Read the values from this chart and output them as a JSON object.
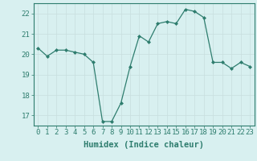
{
  "x": [
    0,
    1,
    2,
    3,
    4,
    5,
    6,
    7,
    8,
    9,
    10,
    11,
    12,
    13,
    14,
    15,
    16,
    17,
    18,
    19,
    20,
    21,
    22,
    23
  ],
  "y": [
    20.3,
    19.9,
    20.2,
    20.2,
    20.1,
    20.0,
    19.6,
    16.7,
    16.7,
    17.6,
    19.4,
    20.9,
    20.6,
    21.5,
    21.6,
    21.5,
    22.2,
    22.1,
    21.8,
    19.6,
    19.6,
    19.3,
    19.6,
    19.4
  ],
  "xlabel": "Humidex (Indice chaleur)",
  "xlim": [
    -0.5,
    23.5
  ],
  "ylim": [
    16.5,
    22.5
  ],
  "yticks": [
    17,
    18,
    19,
    20,
    21,
    22
  ],
  "xticks": [
    0,
    1,
    2,
    3,
    4,
    5,
    6,
    7,
    8,
    9,
    10,
    11,
    12,
    13,
    14,
    15,
    16,
    17,
    18,
    19,
    20,
    21,
    22,
    23
  ],
  "line_color": "#2e7d6e",
  "marker": "D",
  "marker_size": 2,
  "bg_color": "#d8f0f0",
  "grid_major_color": "#c8dede",
  "grid_minor_color": "#e0ecec",
  "tick_label_fontsize": 6.5,
  "xlabel_fontsize": 7.5,
  "xlabel_fontweight": "bold"
}
